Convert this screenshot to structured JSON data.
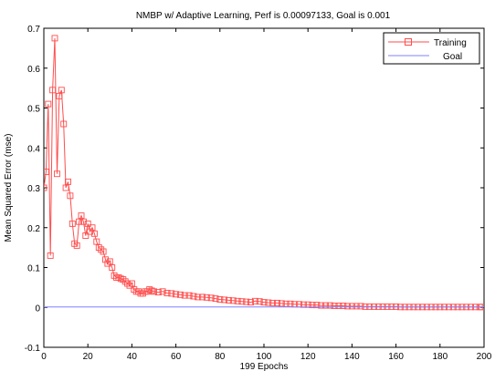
{
  "chart_data": {
    "type": "line",
    "title": "NMBP w/ Adaptive Learning, Perf is 0.00097133, Goal is 0.001",
    "xlabel": "199 Epochs",
    "ylabel": "Mean Squared Error (mse)",
    "xlim": [
      0,
      200
    ],
    "ylim": [
      -0.1,
      0.7
    ],
    "xticks": [
      "0",
      "20",
      "40",
      "60",
      "80",
      "100",
      "120",
      "140",
      "160",
      "180",
      "200"
    ],
    "yticks": [
      "-0.1",
      "0",
      "0.1",
      "0.2",
      "0.3",
      "0.4",
      "0.5",
      "0.6",
      "0.7"
    ],
    "grid": false,
    "legend_position": "top-right",
    "colors": {
      "training": "#ff4d4d",
      "goal": "#8080ff",
      "axis": "#000000"
    },
    "series": [
      {
        "name": "Training",
        "marker": "square",
        "x": [
          0,
          1,
          2,
          3,
          4,
          5,
          6,
          7,
          8,
          9,
          10,
          11,
          12,
          13,
          14,
          15,
          16,
          17,
          18,
          19,
          20,
          21,
          22,
          23,
          24,
          25,
          26,
          27,
          28,
          29,
          30,
          31,
          32,
          33,
          34,
          35,
          36,
          37,
          38,
          39,
          40,
          41,
          42,
          43,
          44,
          45,
          46,
          47,
          48,
          49,
          50,
          52,
          54,
          56,
          58,
          60,
          62,
          64,
          66,
          68,
          70,
          72,
          74,
          76,
          78,
          80,
          82,
          84,
          86,
          88,
          90,
          92,
          94,
          96,
          98,
          100,
          102,
          104,
          106,
          108,
          110,
          112,
          114,
          116,
          118,
          120,
          122,
          124,
          126,
          128,
          130,
          132,
          134,
          136,
          138,
          140,
          142,
          144,
          146,
          148,
          150,
          152,
          154,
          156,
          158,
          160,
          162,
          164,
          166,
          168,
          170,
          172,
          174,
          176,
          178,
          180,
          182,
          184,
          186,
          188,
          190,
          192,
          194,
          196,
          198,
          199
        ],
        "y": [
          0.3,
          0.34,
          0.51,
          0.13,
          0.545,
          0.675,
          0.335,
          0.53,
          0.545,
          0.46,
          0.3,
          0.315,
          0.28,
          0.21,
          0.16,
          0.155,
          0.215,
          0.23,
          0.215,
          0.18,
          0.21,
          0.19,
          0.2,
          0.185,
          0.165,
          0.15,
          0.145,
          0.14,
          0.12,
          0.11,
          0.115,
          0.1,
          0.08,
          0.075,
          0.075,
          0.072,
          0.07,
          0.065,
          0.06,
          0.055,
          0.06,
          0.045,
          0.04,
          0.04,
          0.035,
          0.035,
          0.04,
          0.04,
          0.045,
          0.042,
          0.04,
          0.038,
          0.04,
          0.036,
          0.035,
          0.033,
          0.032,
          0.03,
          0.03,
          0.028,
          0.026,
          0.026,
          0.025,
          0.024,
          0.022,
          0.02,
          0.019,
          0.018,
          0.017,
          0.016,
          0.015,
          0.014,
          0.013,
          0.016,
          0.015,
          0.013,
          0.012,
          0.011,
          0.011,
          0.01,
          0.009,
          0.009,
          0.008,
          0.008,
          0.007,
          0.007,
          0.006,
          0.006,
          0.005,
          0.005,
          0.005,
          0.004,
          0.004,
          0.004,
          0.003,
          0.003,
          0.003,
          0.003,
          0.002,
          0.002,
          0.002,
          0.002,
          0.002,
          0.002,
          0.002,
          0.002,
          0.001,
          0.001,
          0.001,
          0.001,
          0.001,
          0.001,
          0.001,
          0.001,
          0.001,
          0.001,
          0.001,
          0.001,
          0.001,
          0.001,
          0.001,
          0.001,
          0.001,
          0.001,
          0.001,
          0.001
        ]
      },
      {
        "name": "Goal",
        "marker": "none",
        "x": [
          0,
          200
        ],
        "y": [
          0.001,
          0.001
        ]
      }
    ]
  }
}
